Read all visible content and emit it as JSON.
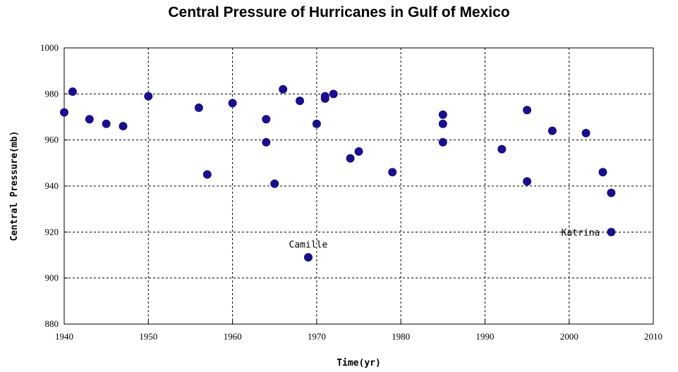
{
  "chart_data": {
    "type": "scatter",
    "title": "Central Pressure of Hurricanes in Gulf of Mexico",
    "xlabel": "Time(yr)",
    "ylabel": "Central Pressure(mb)",
    "xlim": [
      1940,
      2010
    ],
    "ylim": [
      880,
      1000
    ],
    "xticks": [
      1940,
      1950,
      1960,
      1970,
      1980,
      1990,
      2000,
      2010
    ],
    "yticks": [
      880,
      900,
      920,
      940,
      960,
      980,
      1000
    ],
    "grid": true,
    "marker_color": "#1a0f8a",
    "points": [
      {
        "x": 1940,
        "y": 972
      },
      {
        "x": 1941,
        "y": 981
      },
      {
        "x": 1943,
        "y": 969
      },
      {
        "x": 1945,
        "y": 967
      },
      {
        "x": 1947,
        "y": 966
      },
      {
        "x": 1950,
        "y": 979
      },
      {
        "x": 1956,
        "y": 974
      },
      {
        "x": 1957,
        "y": 945
      },
      {
        "x": 1960,
        "y": 976
      },
      {
        "x": 1964,
        "y": 969
      },
      {
        "x": 1964,
        "y": 959
      },
      {
        "x": 1965,
        "y": 941
      },
      {
        "x": 1966,
        "y": 982
      },
      {
        "x": 1968,
        "y": 977
      },
      {
        "x": 1969,
        "y": 909
      },
      {
        "x": 1970,
        "y": 967
      },
      {
        "x": 1971,
        "y": 979
      },
      {
        "x": 1971,
        "y": 978
      },
      {
        "x": 1972,
        "y": 980
      },
      {
        "x": 1974,
        "y": 952
      },
      {
        "x": 1975,
        "y": 955
      },
      {
        "x": 1979,
        "y": 946
      },
      {
        "x": 1985,
        "y": 971
      },
      {
        "x": 1985,
        "y": 967
      },
      {
        "x": 1985,
        "y": 959
      },
      {
        "x": 1992,
        "y": 956
      },
      {
        "x": 1995,
        "y": 973
      },
      {
        "x": 1995,
        "y": 942
      },
      {
        "x": 1998,
        "y": 964
      },
      {
        "x": 2002,
        "y": 963
      },
      {
        "x": 2004,
        "y": 946
      },
      {
        "x": 2005,
        "y": 937
      },
      {
        "x": 2005,
        "y": 920
      }
    ],
    "annotations": [
      {
        "text": "Camille",
        "x": 1969,
        "y": 909
      },
      {
        "text": "Katrina",
        "x": 2005,
        "y": 920
      }
    ]
  }
}
